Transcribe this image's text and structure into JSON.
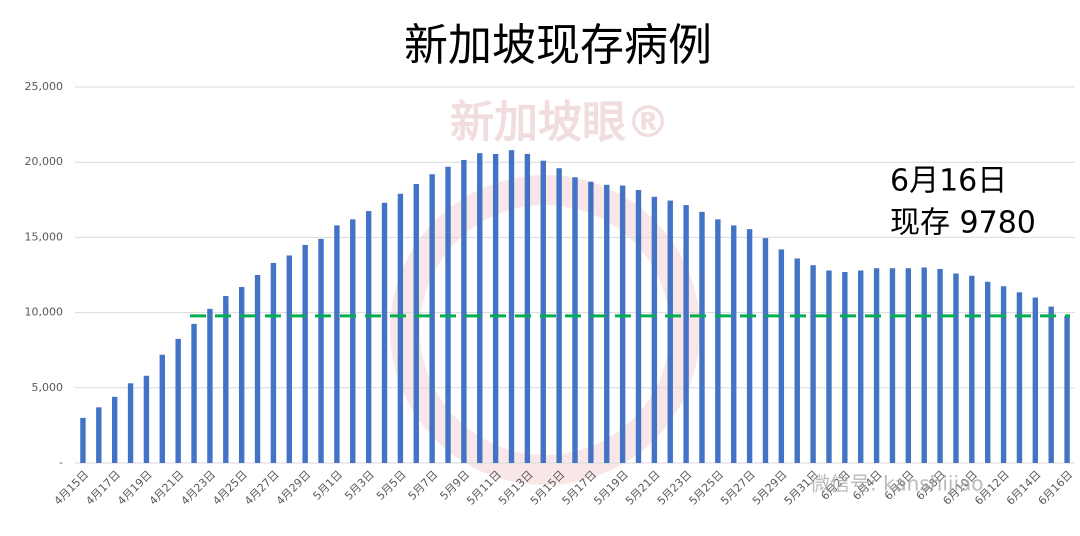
{
  "chart_data": {
    "type": "bar",
    "title": "新加坡现存病例",
    "categories": [
      "4月15日",
      null,
      "4月17日",
      null,
      "4月19日",
      null,
      "4月21日",
      null,
      "4月23日",
      null,
      "4月25日",
      null,
      "4月27日",
      null,
      "4月29日",
      null,
      "5月1日",
      null,
      "5月3日",
      null,
      "5月5日",
      null,
      "5月7日",
      null,
      "5月9日",
      null,
      "5月11日",
      null,
      "5月13日",
      null,
      "5月15日",
      null,
      "5月17日",
      null,
      "5月19日",
      null,
      "5月21日",
      null,
      "5月23日",
      null,
      "5月25日",
      null,
      "5月27日",
      null,
      "5月29日",
      null,
      "5月31日",
      null,
      "6月2日",
      null,
      "6月4日",
      null,
      "6月6日",
      null,
      "6月8日",
      null,
      "6月10日",
      null,
      "6月12日",
      null,
      "6月14日",
      null,
      "6月16日"
    ],
    "values": [
      3000,
      3700,
      4400,
      5300,
      5800,
      7200,
      8250,
      9250,
      10250,
      11100,
      11700,
      12500,
      13300,
      13800,
      14500,
      14900,
      15800,
      16200,
      16750,
      17300,
      17900,
      18550,
      19200,
      19700,
      20150,
      20600,
      20550,
      20800,
      20550,
      20100,
      19600,
      19000,
      18700,
      18500,
      18450,
      18150,
      17700,
      17450,
      17150,
      16700,
      16200,
      15800,
      15550,
      14950,
      14200,
      13600,
      13150,
      12800,
      12700,
      12800,
      12950,
      12950,
      12950,
      13000,
      12900,
      12600,
      12450,
      12050,
      11750,
      11350,
      11000,
      10400,
      9780
    ],
    "color": "#4472c4",
    "ylim": [
      0,
      25000
    ],
    "yticks": [
      {
        "value": 0,
        "label": "-"
      },
      {
        "value": 5000,
        "label": "5,000"
      },
      {
        "value": 10000,
        "label": "10,000"
      },
      {
        "value": 15000,
        "label": "15,000"
      },
      {
        "value": 20000,
        "label": "20,000"
      },
      {
        "value": 25000,
        "label": "25,000"
      }
    ],
    "grid": true,
    "reference_line": {
      "value": 9780,
      "color": "#00b050"
    },
    "annotation": [
      "6月16日",
      "现存 9780"
    ],
    "watermarks": [
      "新加坡眼®",
      "微信号: kanshijiao"
    ]
  }
}
